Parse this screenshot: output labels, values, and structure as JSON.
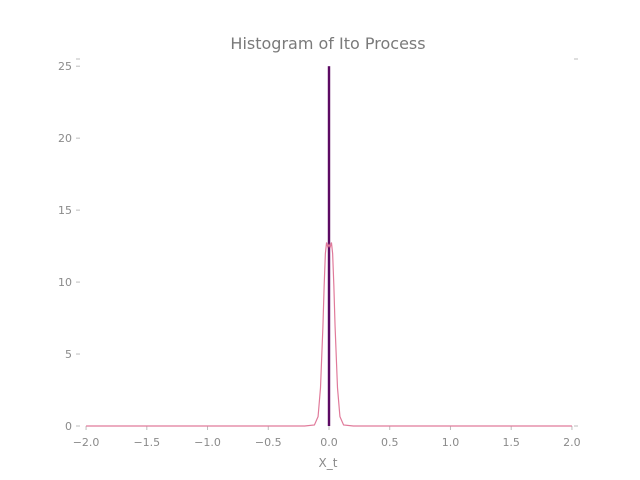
{
  "chart_data": {
    "type": "bar",
    "title": "Histogram of Ito Process",
    "xlabel": "X_t",
    "ylabel": "",
    "xlim": [
      -2.05,
      2.05
    ],
    "ylim": [
      0,
      25.5
    ],
    "xticks": [
      -2.0,
      -1.5,
      -1.0,
      -0.5,
      0.0,
      0.5,
      1.0,
      1.5,
      2.0
    ],
    "xtick_labels": [
      "−2.0",
      "−1.5",
      "−1.0",
      "−0.5",
      "0.0",
      "0.5",
      "1.0",
      "1.5",
      "2.0"
    ],
    "yticks": [
      0,
      5,
      10,
      15,
      20,
      25
    ],
    "ytick_labels": [
      "0",
      "5",
      "10",
      "15",
      "20",
      "25"
    ],
    "grid": false,
    "series": [
      {
        "kind": "histogram",
        "bins": [
          {
            "x0": -0.01,
            "x1": 0.01,
            "height": 25.0
          }
        ],
        "color": "#5c0a63"
      },
      {
        "kind": "density",
        "x": [
          -2.0,
          -1.5,
          -1.0,
          -0.5,
          -0.2,
          -0.12,
          -0.09,
          -0.07,
          -0.05,
          -0.04,
          -0.03,
          -0.02,
          -0.01,
          0.0,
          0.01,
          0.02,
          0.03,
          0.04,
          0.05,
          0.07,
          0.09,
          0.12,
          0.2,
          0.5,
          1.0,
          1.5,
          2.0
        ],
        "y": [
          0,
          0,
          0,
          0,
          0.0,
          0.07,
          0.65,
          2.65,
          6.93,
          9.73,
          11.97,
          12.75,
          12.43,
          12.6,
          12.43,
          12.75,
          11.97,
          9.73,
          6.93,
          2.65,
          0.65,
          0.07,
          0.0,
          0,
          0,
          0,
          0
        ],
        "color": "#e07a9a"
      }
    ]
  }
}
